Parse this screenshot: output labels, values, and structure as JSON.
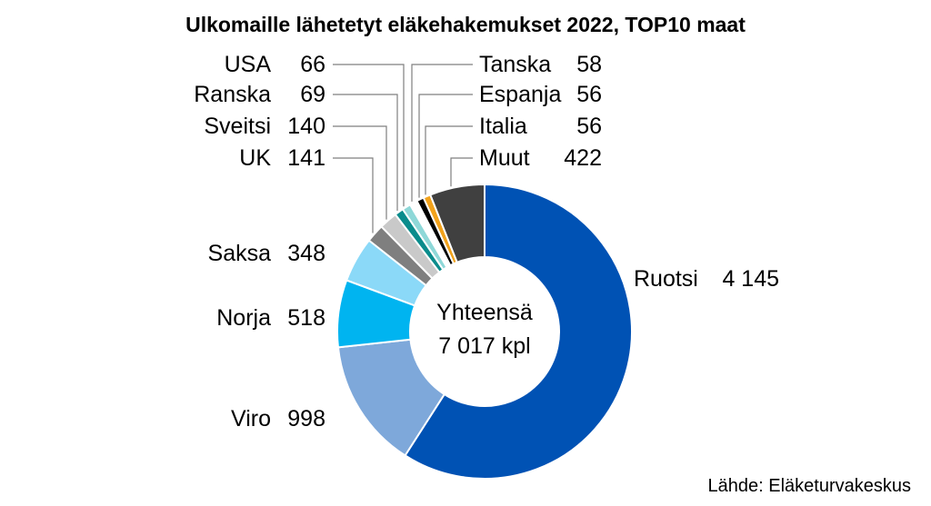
{
  "chart_data": {
    "type": "pie",
    "title": "Ulkomaille lähetetyt eläkehakemukset 2022, TOP10 maat",
    "center_label": [
      "Yhteensä",
      "7 017 kpl"
    ],
    "source": "Lähde: Eläketurvakeskus",
    "slices": [
      {
        "label": "Ruotsi",
        "value": 4145,
        "value_label": "4 145",
        "color": "#0052B4"
      },
      {
        "label": "Viro",
        "value": 998,
        "value_label": "998",
        "color": "#7EA8DA"
      },
      {
        "label": "Norja",
        "value": 518,
        "value_label": "518",
        "color": "#00B4F0"
      },
      {
        "label": "Saksa",
        "value": 348,
        "value_label": "348",
        "color": "#8BD9F8"
      },
      {
        "label": "UK",
        "value": 141,
        "value_label": "141",
        "color": "#7F7F7F"
      },
      {
        "label": "Sveitsi",
        "value": 140,
        "value_label": "140",
        "color": "#C9C9C9"
      },
      {
        "label": "Ranska",
        "value": 69,
        "value_label": "69",
        "color": "#0A8C8C"
      },
      {
        "label": "USA",
        "value": 66,
        "value_label": "66",
        "color": "#8ED8D8"
      },
      {
        "label": "Tanska",
        "value": 58,
        "value_label": "58",
        "color": "#FFFFFF"
      },
      {
        "label": "Espanja",
        "value": 56,
        "value_label": "56",
        "color": "#000000"
      },
      {
        "label": "Italia",
        "value": 56,
        "value_label": "56",
        "color": "#F2A21B"
      },
      {
        "label": "Muut",
        "value": 422,
        "value_label": "422",
        "color": "#404040"
      }
    ]
  }
}
